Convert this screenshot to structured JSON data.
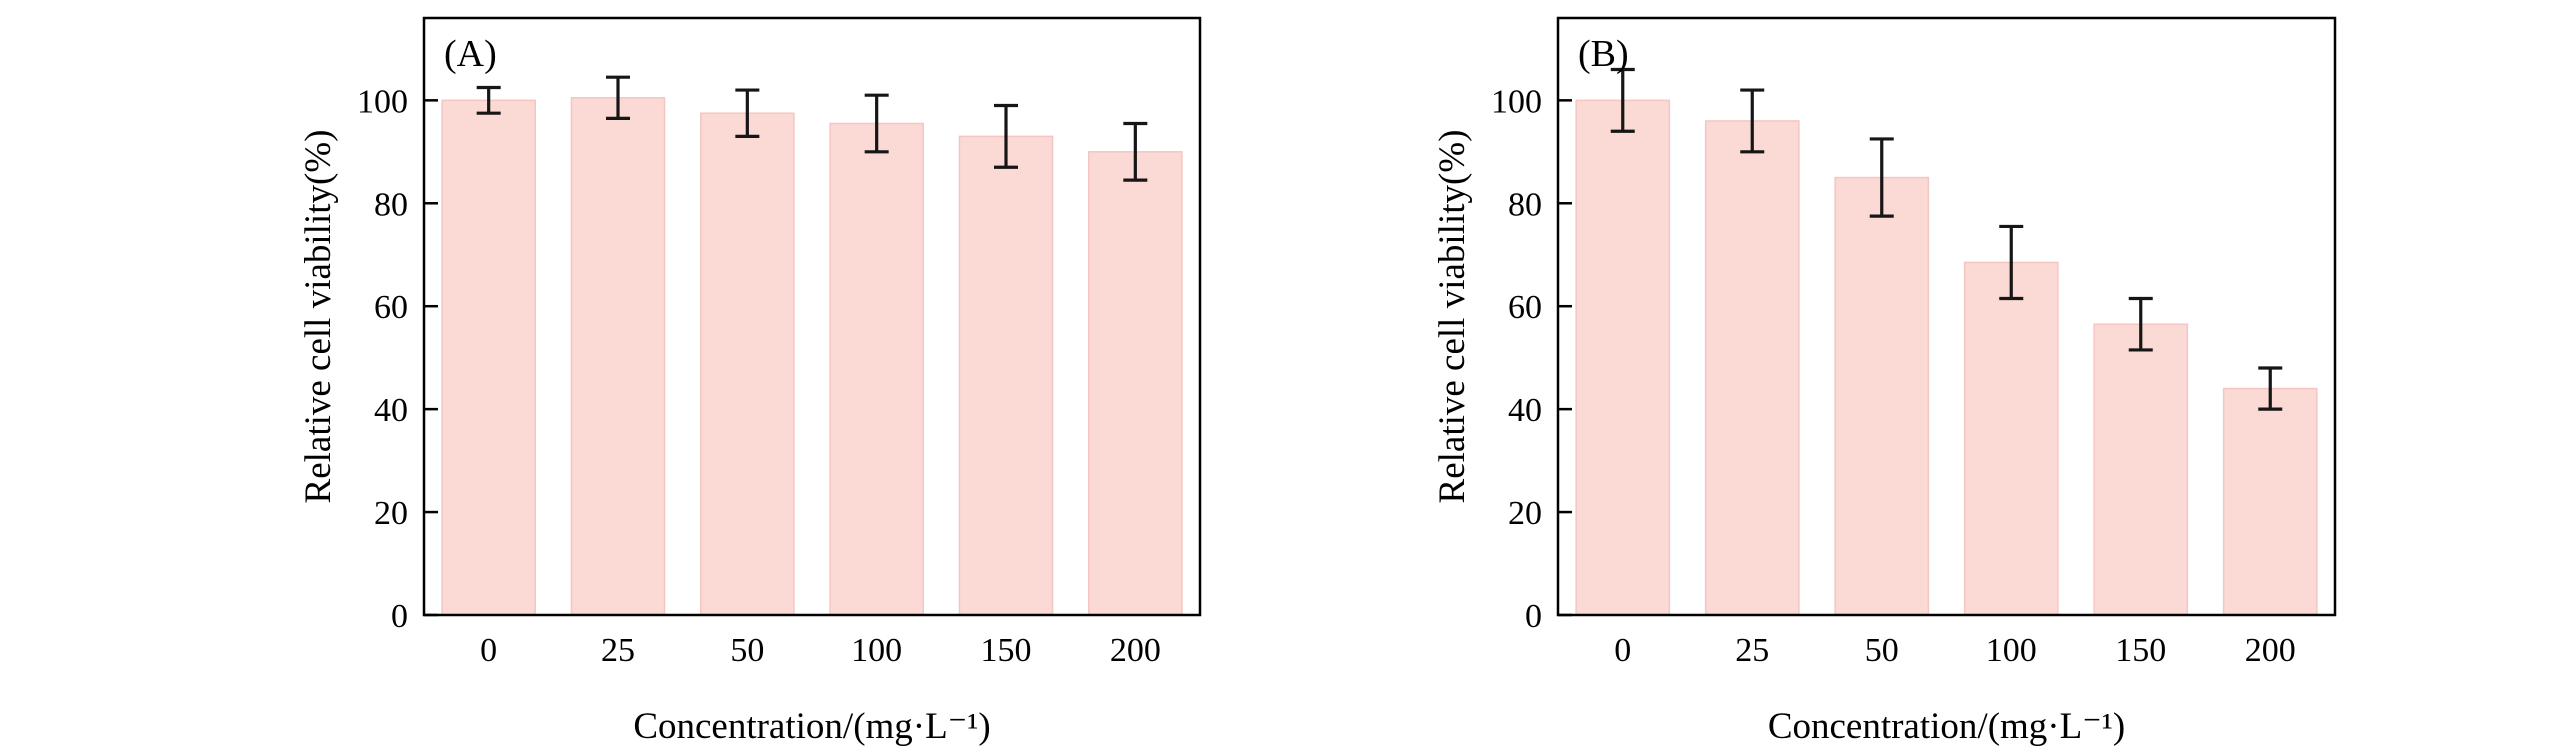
{
  "figure": {
    "background": "#ffffff"
  },
  "style": {
    "bar_fill": "#fbd9d5",
    "bar_stroke": "#f5c6c1",
    "error_color": "#161616",
    "axis_color": "#000000",
    "text_color": "#000000"
  },
  "chart_data": [
    {
      "type": "bar",
      "panel_label": "(A)",
      "title": "",
      "xlabel": "Concentration/(mg·L⁻¹)",
      "ylabel": "Relative cell viability(%)",
      "categories": [
        "0",
        "25",
        "50",
        "100",
        "150",
        "200"
      ],
      "values": [
        100,
        100.5,
        97.5,
        95.5,
        93,
        90
      ],
      "errors": [
        2.5,
        4,
        4.5,
        5.5,
        6,
        5.5
      ],
      "yticks": [
        0,
        20,
        40,
        60,
        80,
        100
      ],
      "ylim": [
        0,
        116
      ],
      "grid": false,
      "legend": null
    },
    {
      "type": "bar",
      "panel_label": "(B)",
      "title": "",
      "xlabel": "Concentration/(mg·L⁻¹)",
      "ylabel": "Relative cell viability(%)",
      "categories": [
        "0",
        "25",
        "50",
        "100",
        "150",
        "200"
      ],
      "values": [
        100,
        96,
        85,
        68.5,
        56.5,
        44
      ],
      "errors": [
        6,
        6,
        7.5,
        7,
        5,
        4
      ],
      "yticks": [
        0,
        20,
        40,
        60,
        80,
        100
      ],
      "ylim": [
        0,
        116
      ],
      "grid": false,
      "legend": null
    }
  ]
}
